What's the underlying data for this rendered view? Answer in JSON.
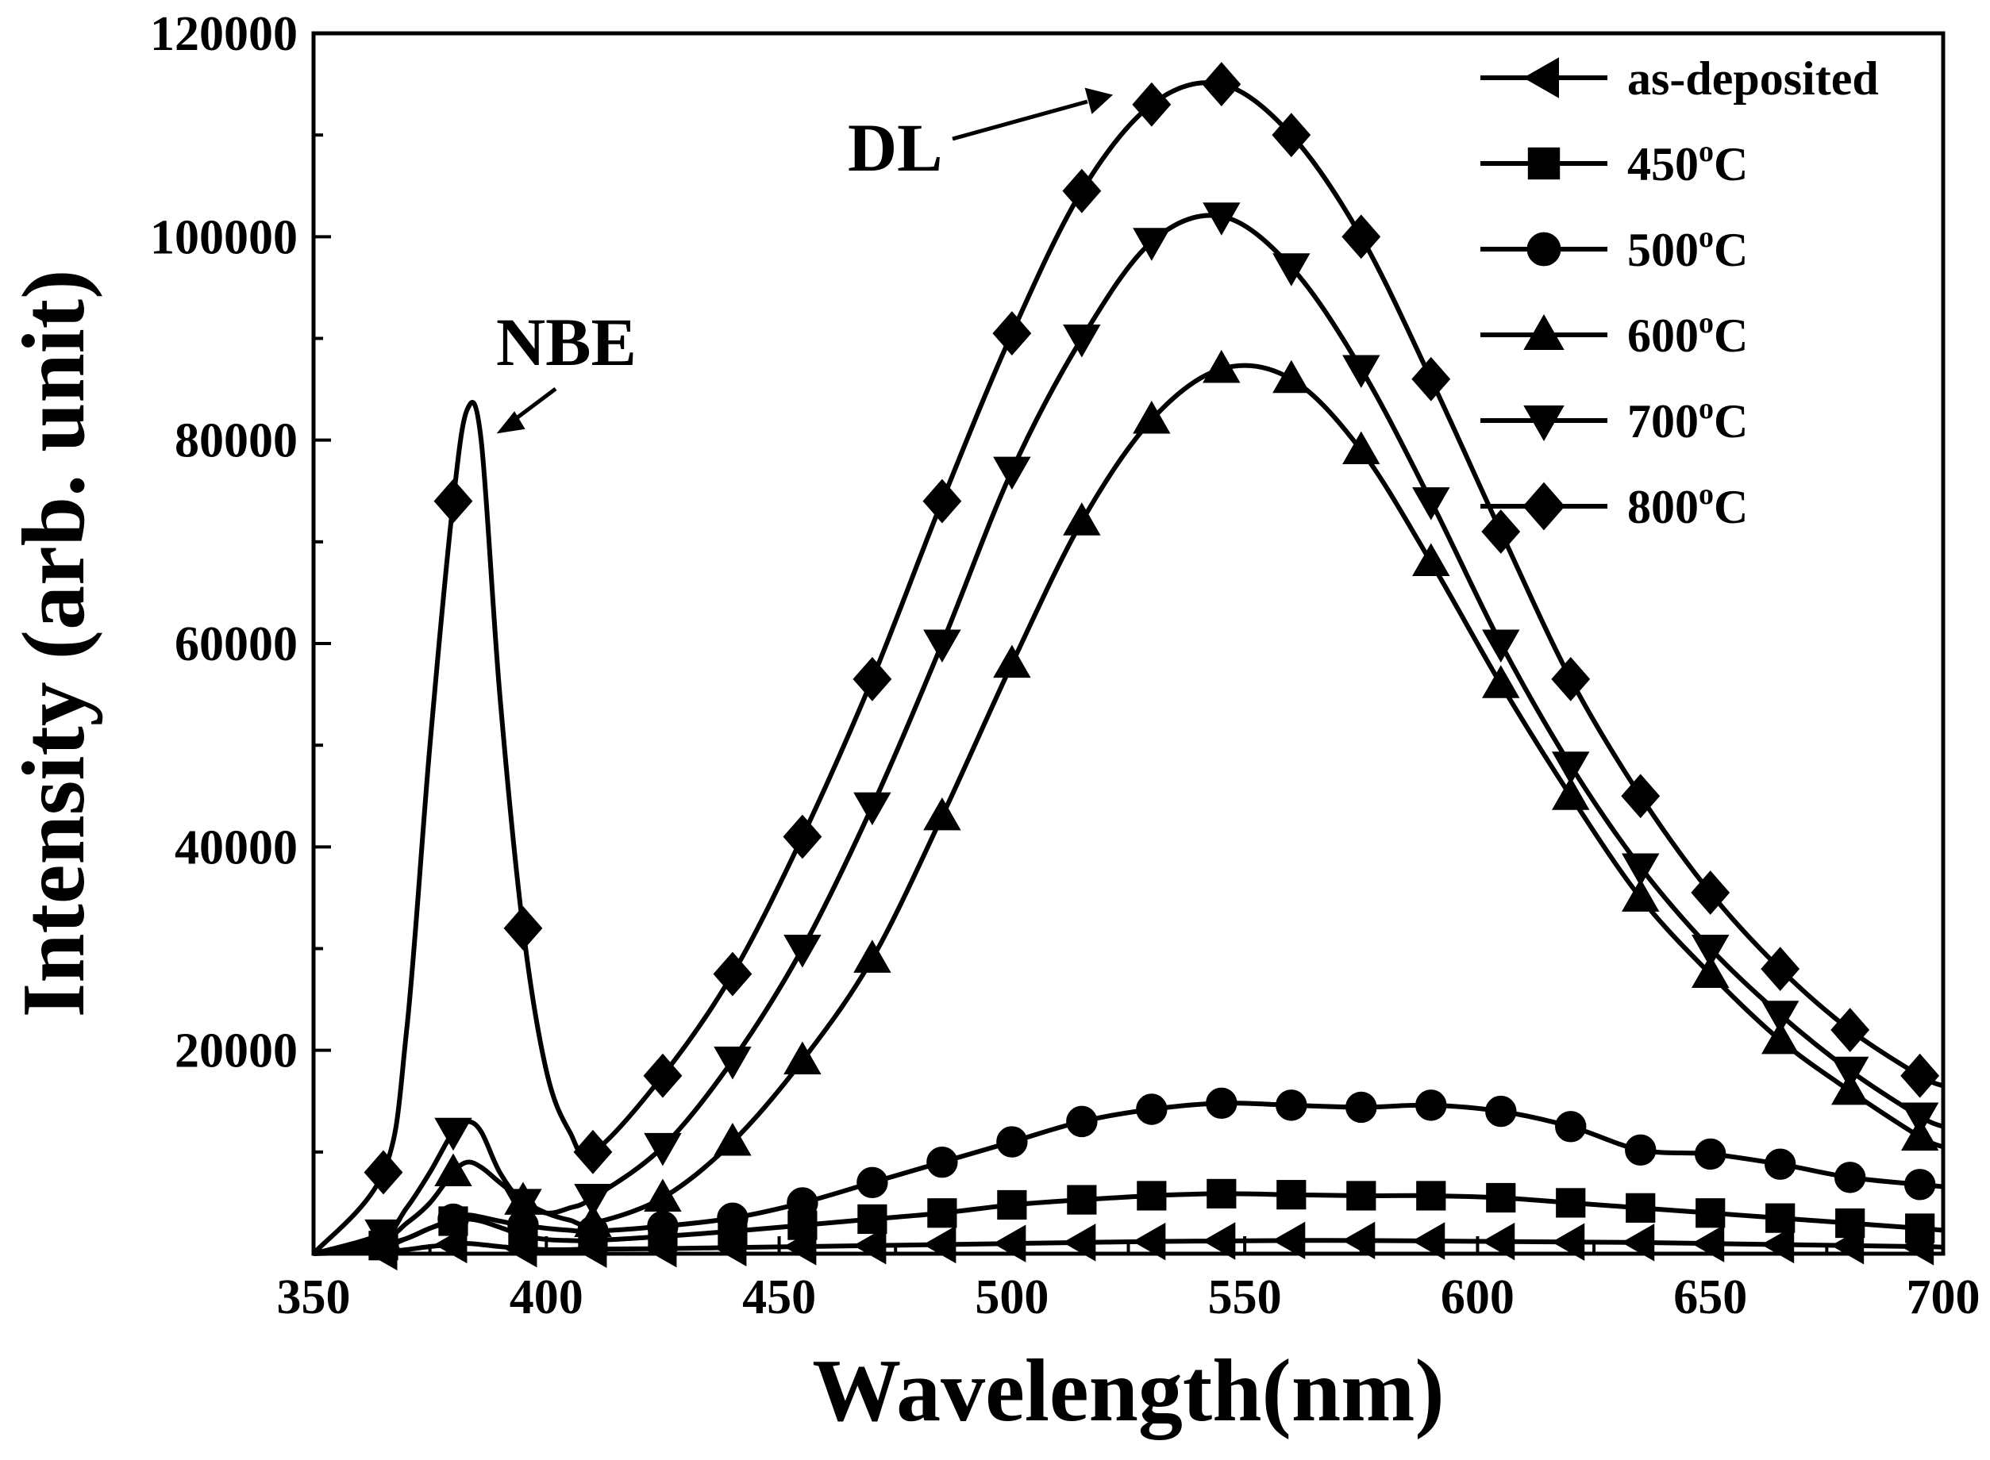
{
  "chart_data": {
    "type": "line",
    "title": "",
    "xlabel": "Wavelength(nm)",
    "ylabel": "Intensity (arb. unit)",
    "xlim": [
      350,
      700
    ],
    "ylim": [
      0,
      120000
    ],
    "x_ticks": [
      350,
      400,
      450,
      500,
      550,
      600,
      650,
      700
    ],
    "y_ticks": [
      20000,
      40000,
      60000,
      80000,
      100000,
      120000
    ],
    "legend_position": "top-right",
    "grid": false,
    "annotations": [
      {
        "text": "NBE",
        "x": 383,
        "y": 80000
      },
      {
        "text": "DL",
        "x": 530,
        "y": 113000
      }
    ],
    "x": [
      350,
      365,
      370,
      375,
      380,
      383,
      386,
      390,
      395,
      400,
      405,
      410,
      425,
      440,
      455,
      470,
      485,
      500,
      515,
      530,
      545,
      560,
      575,
      590,
      605,
      620,
      635,
      650,
      665,
      680,
      695,
      700
    ],
    "series": [
      {
        "name": "as-deposited",
        "superscript": "",
        "suffix": "",
        "marker": "triangle-left",
        "values": [
          0,
          200,
          400,
          700,
          900,
          1000,
          900,
          700,
          500,
          400,
          400,
          450,
          500,
          600,
          700,
          800,
          900,
          1000,
          1100,
          1200,
          1250,
          1300,
          1300,
          1250,
          1200,
          1150,
          1100,
          1000,
          900,
          800,
          700,
          650
        ]
      },
      {
        "name": "450",
        "superscript": "o",
        "suffix": "C",
        "marker": "square",
        "values": [
          0,
          800,
          1500,
          2500,
          3200,
          3400,
          3200,
          2600,
          1800,
          1400,
          1300,
          1300,
          1700,
          2200,
          2800,
          3400,
          4000,
          4800,
          5300,
          5700,
          5900,
          5800,
          5700,
          5700,
          5500,
          5000,
          4500,
          4000,
          3500,
          3000,
          2500,
          2300
        ]
      },
      {
        "name": "500",
        "superscript": "o",
        "suffix": "C",
        "marker": "circle",
        "values": [
          0,
          1000,
          1500,
          2500,
          3400,
          3800,
          3600,
          3200,
          2800,
          2500,
          2300,
          2200,
          2700,
          3500,
          5000,
          7000,
          9000,
          11000,
          13000,
          14200,
          14800,
          14600,
          14400,
          14600,
          14000,
          12500,
          10200,
          9800,
          8800,
          7500,
          6800,
          6600
        ]
      },
      {
        "name": "600",
        "superscript": "o",
        "suffix": "C",
        "marker": "triangle-up",
        "values": [
          0,
          1500,
          3000,
          5000,
          8000,
          9000,
          8500,
          7000,
          5200,
          4000,
          3300,
          3000,
          5500,
          11000,
          19000,
          29000,
          43000,
          58000,
          72000,
          82000,
          87000,
          86000,
          79000,
          68000,
          56000,
          45000,
          35000,
          27500,
          21000,
          16000,
          11500,
          10500
        ]
      },
      {
        "name": "700",
        "superscript": "o",
        "suffix": "C",
        "marker": "triangle-down",
        "values": [
          0,
          2000,
          4500,
          8000,
          12000,
          13000,
          12000,
          8000,
          5000,
          4000,
          4500,
          5500,
          10500,
          19000,
          30000,
          44000,
          60000,
          77000,
          90000,
          99500,
          102000,
          97000,
          87000,
          74000,
          60000,
          48000,
          38000,
          30000,
          23500,
          18000,
          13500,
          12500
        ]
      },
      {
        "name": "800",
        "superscript": "o",
        "suffix": "C",
        "marker": "diamond",
        "values": [
          0,
          8000,
          22000,
          50000,
          74000,
          83000,
          80000,
          55000,
          32000,
          18000,
          12000,
          10000,
          17500,
          27500,
          41000,
          56500,
          74000,
          90500,
          104500,
          113000,
          115000,
          110000,
          100000,
          86000,
          71000,
          56500,
          45000,
          35500,
          28000,
          22000,
          17500,
          16500
        ]
      }
    ]
  }
}
